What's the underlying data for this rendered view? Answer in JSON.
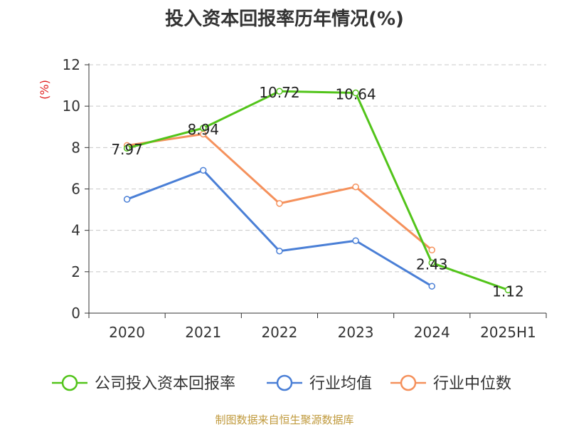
{
  "title": "投入资本回报率历年情况(%)",
  "source": "制图数据来自恒生聚源数据库",
  "chart_data": {
    "type": "line",
    "title": "投入资本回报率历年情况(%)",
    "ylabel": "(%)",
    "ylim": [
      0,
      12
    ],
    "yticks": [
      0,
      2,
      4,
      6,
      8,
      10,
      12
    ],
    "grid": true,
    "legend_position": "bottom",
    "categories": [
      "2020",
      "2021",
      "2022",
      "2023",
      "2024",
      "2025H1"
    ],
    "series": [
      {
        "name": "公司投入资本回报率",
        "color": "#52c41a",
        "values": [
          7.97,
          8.94,
          10.72,
          10.64,
          2.43,
          1.12
        ],
        "labels": [
          "7.97",
          "8.94",
          "10.72",
          "10.64",
          "2.43",
          "1.12"
        ]
      },
      {
        "name": "行业均值",
        "color": "#4a7fd6",
        "values": [
          5.5,
          6.9,
          3.0,
          3.5,
          1.3,
          null
        ]
      },
      {
        "name": "行业中位数",
        "color": "#f5915c",
        "values": [
          8.1,
          8.65,
          5.3,
          6.1,
          3.05,
          null
        ]
      }
    ]
  }
}
